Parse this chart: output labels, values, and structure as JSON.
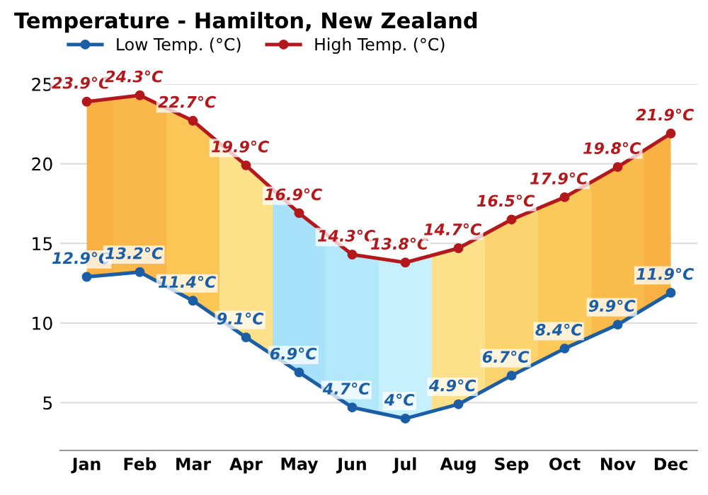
{
  "chart_data": {
    "type": "line",
    "title": "Temperature - Hamilton, New Zealand",
    "categories": [
      "Jan",
      "Feb",
      "Mar",
      "Apr",
      "May",
      "Jun",
      "Jul",
      "Aug",
      "Sep",
      "Oct",
      "Nov",
      "Dec"
    ],
    "series": [
      {
        "name": "Low Temp. (°C)",
        "color": "#1b5ea6",
        "values": [
          12.9,
          13.2,
          11.4,
          9.1,
          6.9,
          4.7,
          4,
          4.9,
          6.7,
          8.4,
          9.9,
          11.9
        ],
        "value_labels": [
          "12.9°C",
          "13.2°C",
          "11.4°C",
          "9.1°C",
          "6.9°C",
          "4.7°C",
          "4°C",
          "4.9°C",
          "6.7°C",
          "8.4°C",
          "9.9°C",
          "11.9°C"
        ]
      },
      {
        "name": "High Temp. (°C)",
        "color": "#b3191c",
        "values": [
          23.9,
          24.3,
          22.7,
          19.9,
          16.9,
          14.3,
          13.8,
          14.7,
          16.5,
          17.9,
          19.8,
          21.9
        ],
        "value_labels": [
          "23.9°C",
          "24.3°C",
          "22.7°C",
          "19.9°C",
          "16.9°C",
          "14.3°C",
          "13.8°C",
          "14.7°C",
          "16.5°C",
          "17.9°C",
          "19.8°C",
          "21.9°C"
        ]
      }
    ],
    "ylim": [
      2,
      25
    ],
    "yticks": [
      5,
      10,
      15,
      20,
      25
    ],
    "grid": "y",
    "legend": "top left",
    "marker": "circle",
    "line_style": "solid"
  }
}
